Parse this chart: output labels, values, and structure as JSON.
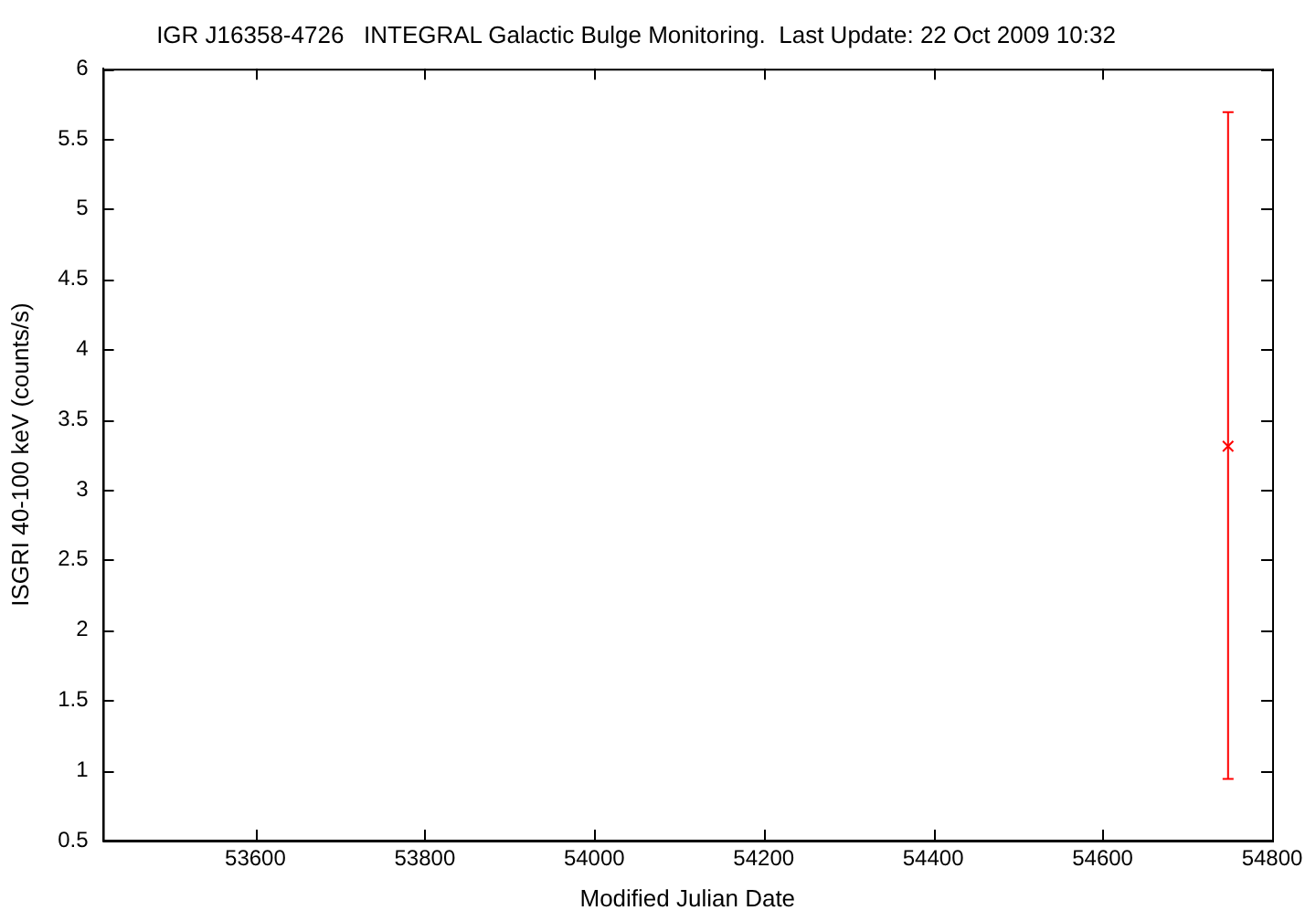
{
  "chart_data": {
    "type": "scatter",
    "title": "IGR J16358-4726   INTEGRAL Galactic Bulge Monitoring.  Last Update: 22 Oct 2009 10:32",
    "xlabel": "Modified Julian Date",
    "ylabel": "ISGRI 40-100 keV (counts/s)",
    "x": [
      54748
    ],
    "series": [
      {
        "color": "#ff0000",
        "values": [
          3.31
        ],
        "errors": [
          [
            0.94,
            5.69
          ]
        ]
      }
    ],
    "xlim": [
      53420,
      54800
    ],
    "xticks": [
      53600,
      53800,
      54000,
      54200,
      54400,
      54600,
      54800
    ],
    "ylim": [
      0.5,
      6
    ],
    "yticks": [
      0.5,
      1,
      1.5,
      2,
      2.5,
      3,
      3.5,
      4,
      4.5,
      5,
      5.5,
      6
    ],
    "marker": "cross",
    "grid": false,
    "legend": false
  }
}
